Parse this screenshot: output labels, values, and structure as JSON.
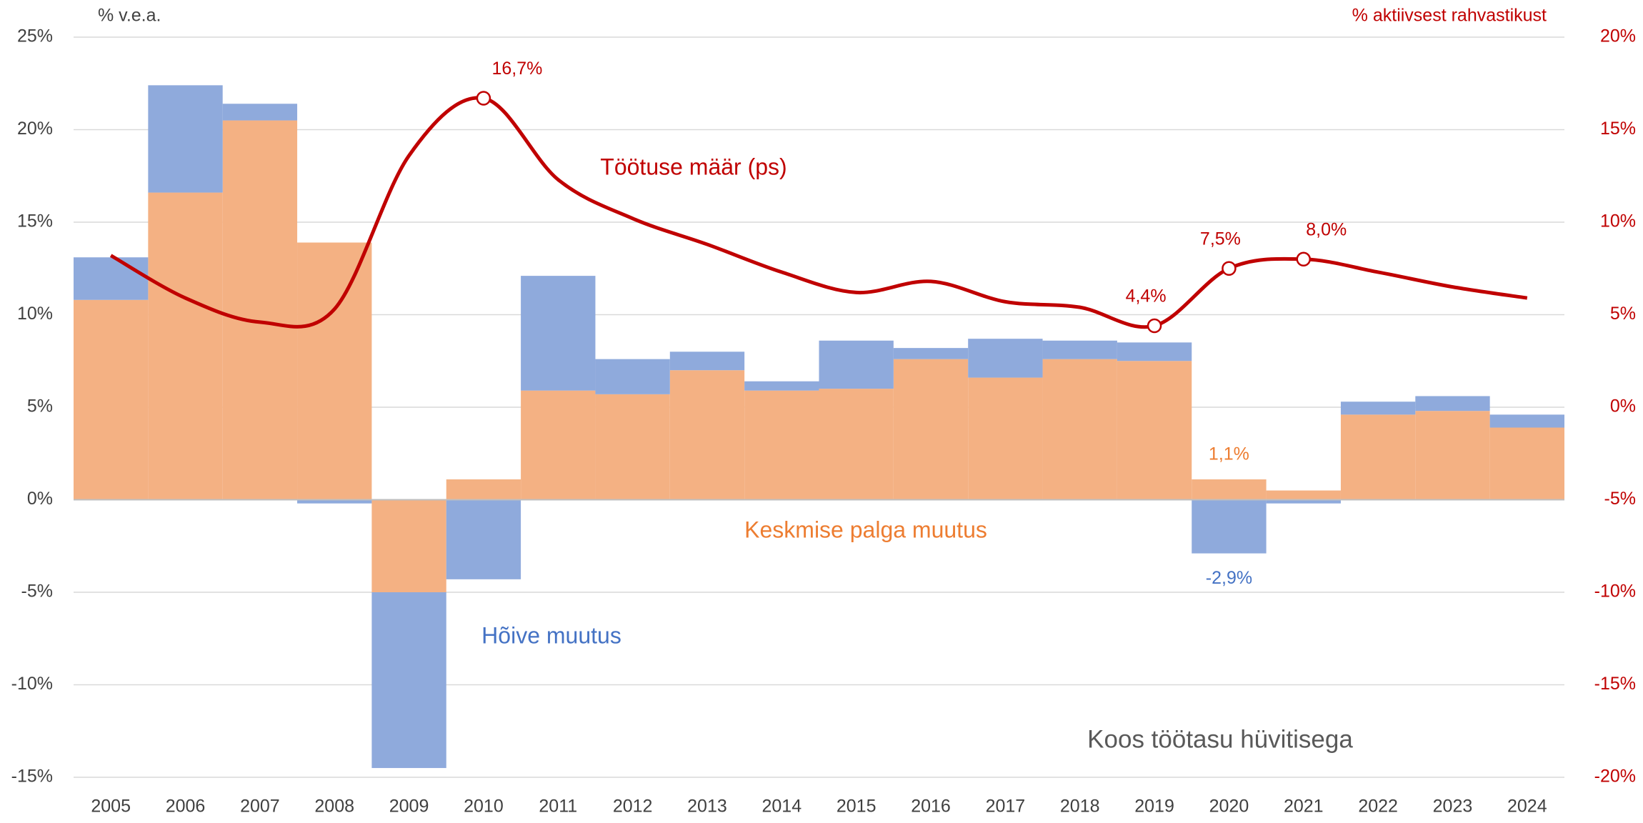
{
  "chart_data": {
    "type": "bar",
    "stacked": true,
    "left_axis_label": "% v.e.a.",
    "right_axis_label": "% aktiivsest rahvastikust",
    "annotation": "Koos töötasu hüvitisega",
    "categories": [
      "2005",
      "2006",
      "2007",
      "2008",
      "2009",
      "2010",
      "2011",
      "2012",
      "2013",
      "2014",
      "2015",
      "2016",
      "2017",
      "2018",
      "2019",
      "2020",
      "2021",
      "2022",
      "2023",
      "2024"
    ],
    "series": [
      {
        "name": "Keskmise palga muutus",
        "color": "#f4b183",
        "label_color": "#ed7d31",
        "values": [
          10.8,
          16.6,
          20.5,
          13.9,
          -5.0,
          1.1,
          5.9,
          5.7,
          7.0,
          5.9,
          6.0,
          7.6,
          6.6,
          7.6,
          7.5,
          1.1,
          0.5,
          4.6,
          4.8,
          3.9
        ],
        "value_labels": [
          null,
          null,
          null,
          null,
          null,
          null,
          null,
          null,
          null,
          null,
          null,
          null,
          null,
          null,
          null,
          "1,1%",
          null,
          null,
          null,
          null
        ]
      },
      {
        "name": "Hõive muutus",
        "color": "#8faadc",
        "label_color": "#4472c4",
        "values": [
          2.3,
          5.8,
          0.9,
          -0.2,
          -9.5,
          -4.3,
          6.2,
          1.9,
          1.0,
          0.5,
          2.6,
          0.6,
          2.1,
          1.0,
          1.0,
          -2.9,
          -0.2,
          0.7,
          0.8,
          0.7
        ],
        "value_labels": [
          null,
          null,
          null,
          null,
          null,
          null,
          null,
          null,
          null,
          null,
          null,
          null,
          null,
          null,
          null,
          "-2,9%",
          null,
          null,
          null,
          null
        ]
      },
      {
        "name": "Töötuse määr (ps)",
        "type": "line",
        "axis": "y2",
        "color": "#c00000",
        "label_color": "#c00000",
        "smooth": true,
        "values": [
          8.2,
          5.9,
          4.6,
          5.3,
          13.6,
          16.7,
          12.3,
          10.2,
          8.8,
          7.3,
          6.2,
          6.8,
          5.7,
          5.4,
          4.4,
          7.5,
          8.0,
          7.3,
          6.5,
          5.9
        ],
        "value_labels": [
          null,
          null,
          null,
          null,
          null,
          "16,7%",
          null,
          null,
          null,
          null,
          null,
          null,
          null,
          null,
          "4,4%",
          "7,5%",
          "8,0%",
          null,
          null,
          null
        ]
      }
    ],
    "ylim": [
      -15,
      25
    ],
    "yticks": [
      {
        "value": -15,
        "label": "-15%"
      },
      {
        "value": -10,
        "label": "-10%"
      },
      {
        "value": -5,
        "label": "-5%"
      },
      {
        "value": 0,
        "label": "0%"
      },
      {
        "value": 5,
        "label": "5%"
      },
      {
        "value": 10,
        "label": "10%"
      },
      {
        "value": 15,
        "label": "15%"
      },
      {
        "value": 20,
        "label": "20%"
      },
      {
        "value": 25,
        "label": "25%"
      }
    ],
    "y2lim": [
      -20,
      20
    ],
    "y2ticks": [
      {
        "value": -20,
        "label": "-20%"
      },
      {
        "value": -15,
        "label": "-15%"
      },
      {
        "value": -10,
        "label": "-10%"
      },
      {
        "value": -5,
        "label": "-5%"
      },
      {
        "value": 0,
        "label": "0%"
      },
      {
        "value": 5,
        "label": "5%"
      },
      {
        "value": 10,
        "label": "10%"
      },
      {
        "value": 15,
        "label": "15%"
      },
      {
        "value": 20,
        "label": "20%"
      }
    ],
    "y2_color": "#c00000",
    "grid": true
  }
}
